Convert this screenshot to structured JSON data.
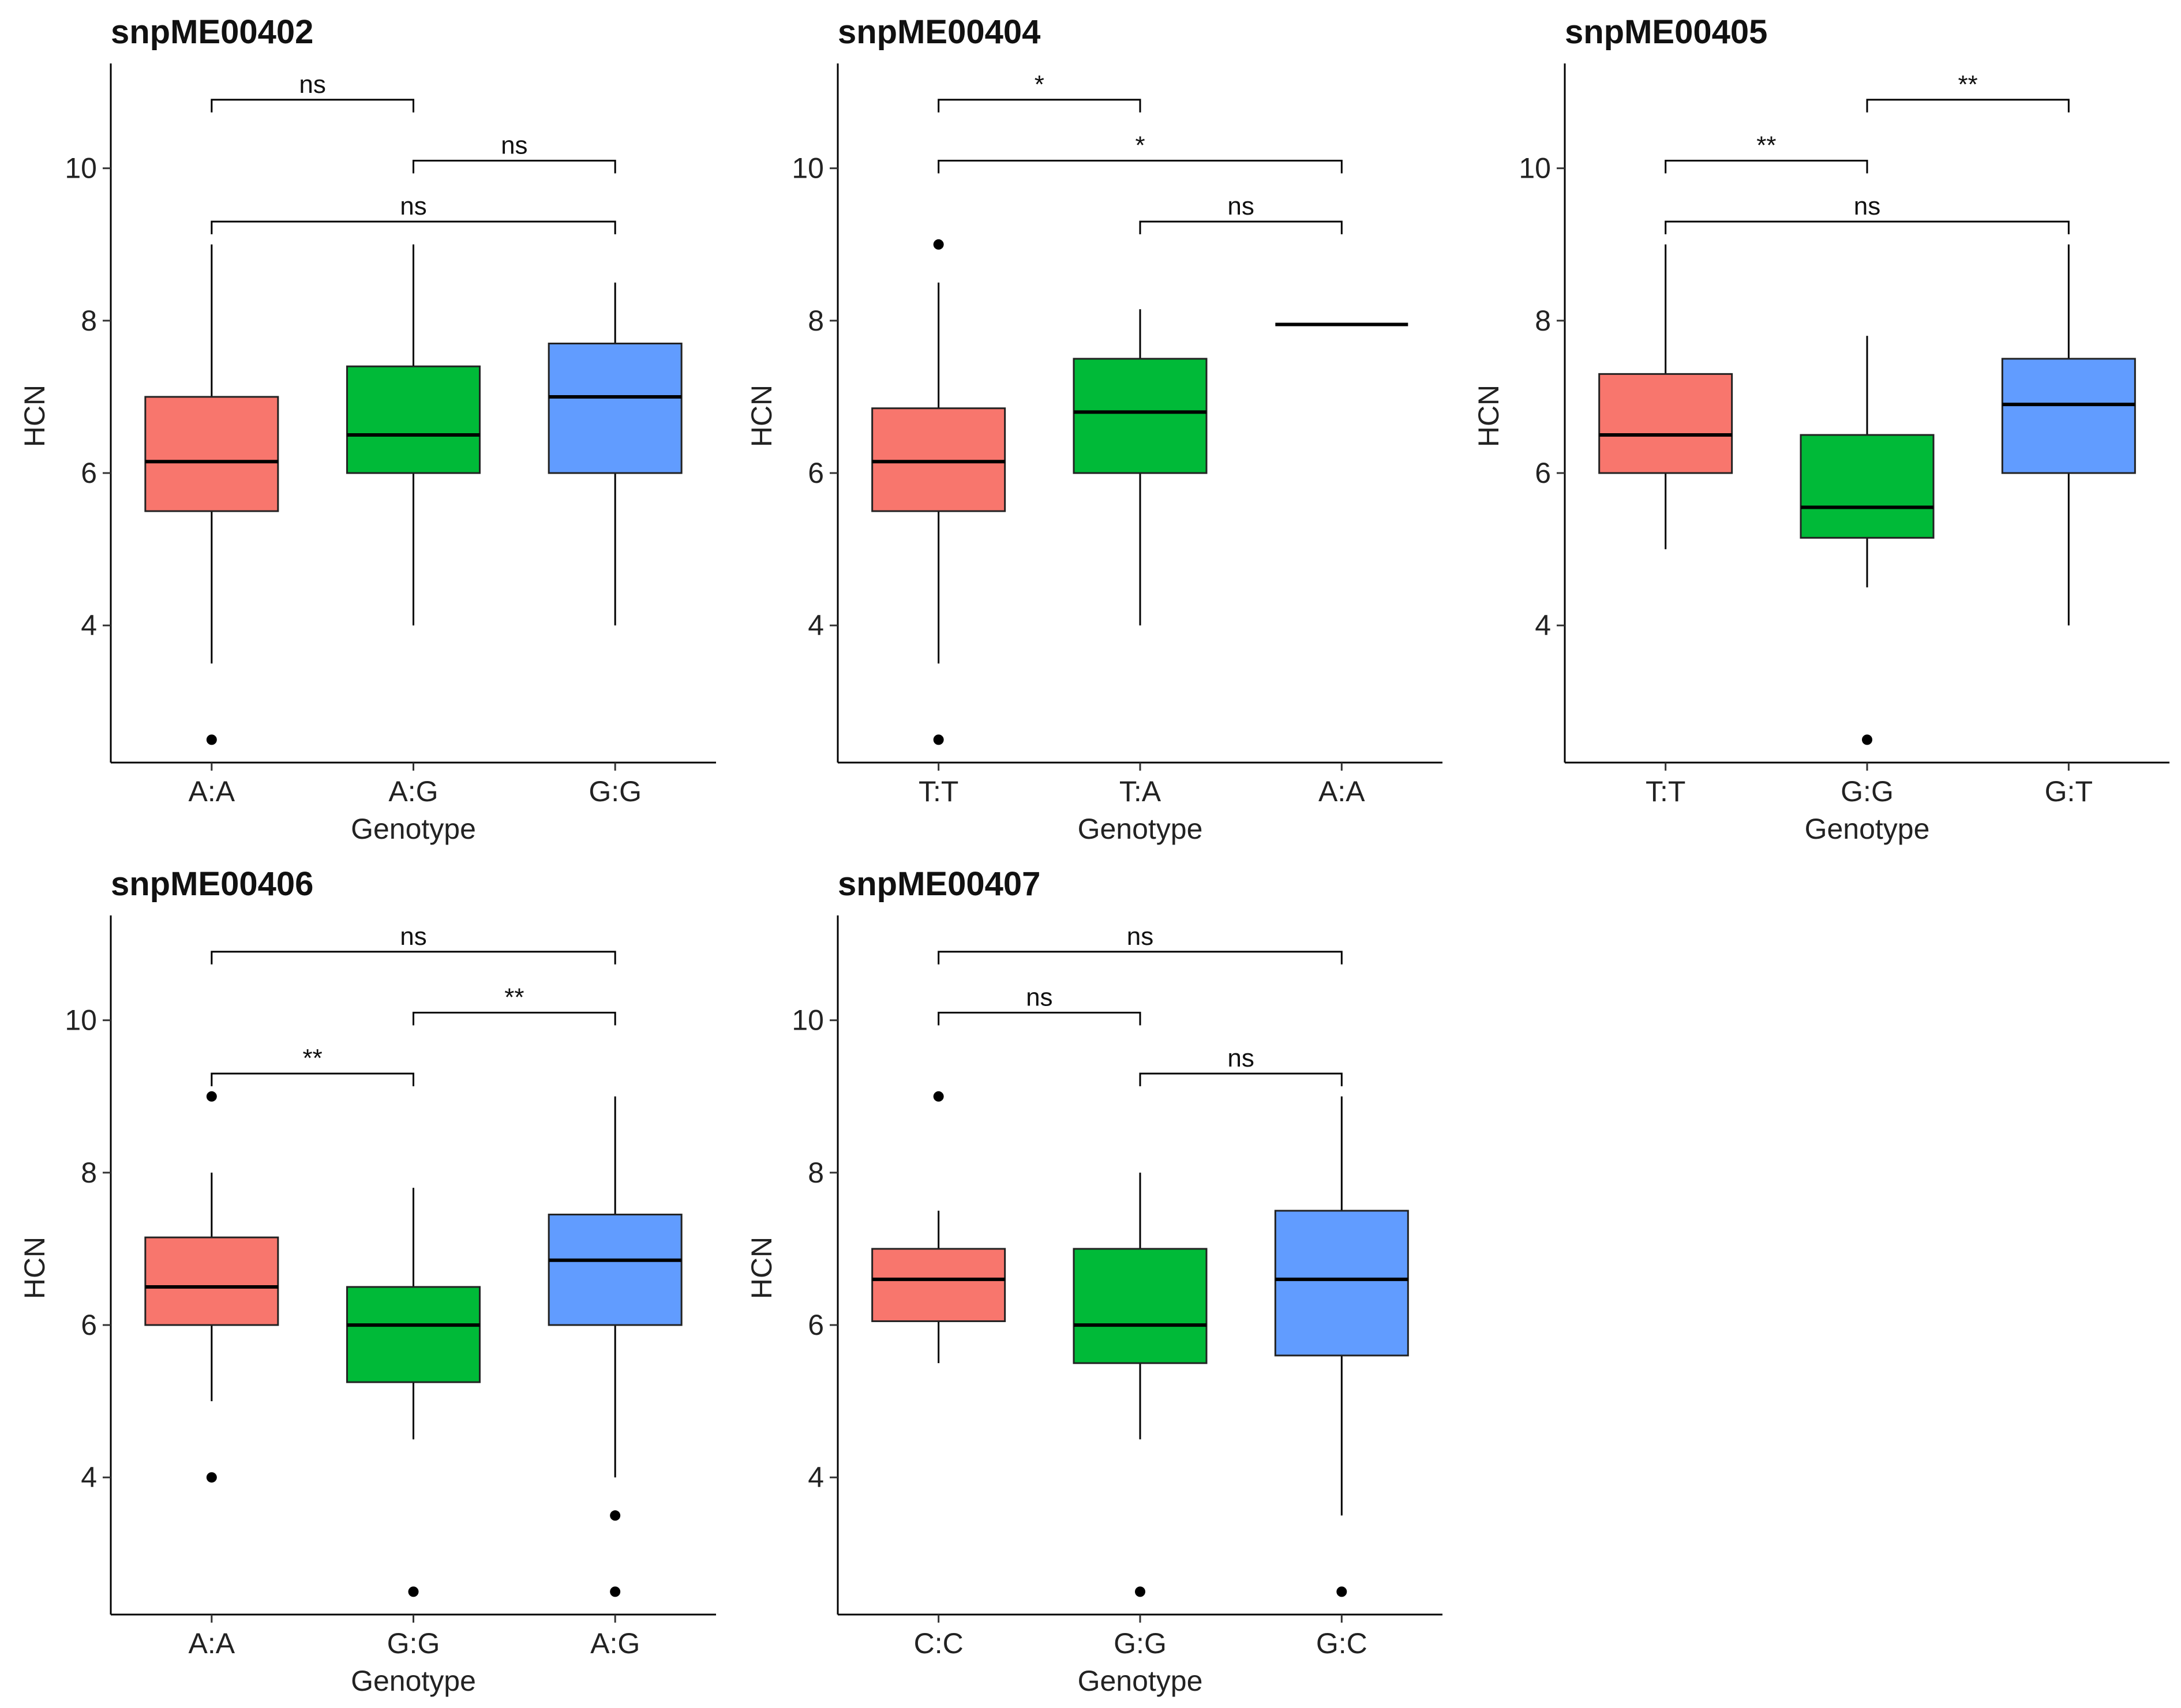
{
  "chart_data": [
    {
      "type": "box",
      "title": "snpME00402",
      "xlabel": "Genotype",
      "ylabel": "HCN",
      "ylim": [
        2.2,
        11.3
      ],
      "yticks": [
        4,
        6,
        8,
        10
      ],
      "categories": [
        "A:A",
        "A:G",
        "G:G"
      ],
      "boxes": [
        {
          "category": "A:A",
          "color": "#F8766D",
          "q1": 5.5,
          "median": 6.15,
          "q3": 7.0,
          "low": 3.5,
          "high": 9.0,
          "outliers": [
            2.5
          ]
        },
        {
          "category": "A:G",
          "color": "#00BA38",
          "q1": 6.0,
          "median": 6.5,
          "q3": 7.4,
          "low": 4.0,
          "high": 9.0,
          "outliers": []
        },
        {
          "category": "G:G",
          "color": "#619CFF",
          "q1": 6.0,
          "median": 7.0,
          "q3": 7.7,
          "low": 4.0,
          "high": 8.5,
          "outliers": []
        }
      ],
      "comparisons": [
        {
          "from": 0,
          "to": 1,
          "y": 10.9,
          "label": "ns"
        },
        {
          "from": 1,
          "to": 2,
          "y": 10.1,
          "label": "ns"
        },
        {
          "from": 0,
          "to": 2,
          "y": 9.3,
          "label": "ns"
        }
      ]
    },
    {
      "type": "box",
      "title": "snpME00404",
      "xlabel": "Genotype",
      "ylabel": "HCN",
      "ylim": [
        2.2,
        11.3
      ],
      "yticks": [
        4,
        6,
        8,
        10
      ],
      "categories": [
        "T:T",
        "T:A",
        "A:A"
      ],
      "boxes": [
        {
          "category": "T:T",
          "color": "#F8766D",
          "q1": 5.5,
          "median": 6.15,
          "q3": 6.85,
          "low": 3.5,
          "high": 8.5,
          "outliers": [
            9.0,
            2.5
          ]
        },
        {
          "category": "T:A",
          "color": "#00BA38",
          "q1": 6.0,
          "median": 6.8,
          "q3": 7.5,
          "low": 4.0,
          "high": 8.15,
          "outliers": []
        },
        {
          "category": "A:A",
          "color": "#619CFF",
          "q1": 7.95,
          "median": 7.95,
          "q3": 7.95,
          "low": 7.95,
          "high": 7.95,
          "outliers": []
        }
      ],
      "comparisons": [
        {
          "from": 0,
          "to": 1,
          "y": 10.9,
          "label": "*"
        },
        {
          "from": 0,
          "to": 2,
          "y": 10.1,
          "label": "*"
        },
        {
          "from": 1,
          "to": 2,
          "y": 9.3,
          "label": "ns"
        }
      ]
    },
    {
      "type": "box",
      "title": "snpME00405",
      "xlabel": "Genotype",
      "ylabel": "HCN",
      "ylim": [
        2.2,
        11.3
      ],
      "yticks": [
        4,
        6,
        8,
        10
      ],
      "categories": [
        "T:T",
        "G:G",
        "G:T"
      ],
      "boxes": [
        {
          "category": "T:T",
          "color": "#F8766D",
          "q1": 6.0,
          "median": 6.5,
          "q3": 7.3,
          "low": 5.0,
          "high": 9.0,
          "outliers": []
        },
        {
          "category": "G:G",
          "color": "#00BA38",
          "q1": 5.15,
          "median": 5.55,
          "q3": 6.5,
          "low": 4.5,
          "high": 7.8,
          "outliers": [
            2.5
          ]
        },
        {
          "category": "G:T",
          "color": "#619CFF",
          "q1": 6.0,
          "median": 6.9,
          "q3": 7.5,
          "low": 4.0,
          "high": 9.0,
          "outliers": []
        }
      ],
      "comparisons": [
        {
          "from": 1,
          "to": 2,
          "y": 10.9,
          "label": "**"
        },
        {
          "from": 0,
          "to": 1,
          "y": 10.1,
          "label": "**"
        },
        {
          "from": 0,
          "to": 2,
          "y": 9.3,
          "label": "ns"
        }
      ]
    },
    {
      "type": "box",
      "title": "snpME00406",
      "xlabel": "Genotype",
      "ylabel": "HCN",
      "ylim": [
        2.2,
        11.3
      ],
      "yticks": [
        4,
        6,
        8,
        10
      ],
      "categories": [
        "A:A",
        "G:G",
        "A:G"
      ],
      "boxes": [
        {
          "category": "A:A",
          "color": "#F8766D",
          "q1": 6.0,
          "median": 6.5,
          "q3": 7.15,
          "low": 5.0,
          "high": 8.0,
          "outliers": [
            9.0,
            4.0
          ]
        },
        {
          "category": "G:G",
          "color": "#00BA38",
          "q1": 5.25,
          "median": 6.0,
          "q3": 6.5,
          "low": 4.5,
          "high": 7.8,
          "outliers": [
            2.5
          ]
        },
        {
          "category": "A:G",
          "color": "#619CFF",
          "q1": 6.0,
          "median": 6.85,
          "q3": 7.45,
          "low": 4.0,
          "high": 9.0,
          "outliers": [
            3.5,
            2.5
          ]
        }
      ],
      "comparisons": [
        {
          "from": 0,
          "to": 2,
          "y": 10.9,
          "label": "ns"
        },
        {
          "from": 1,
          "to": 2,
          "y": 10.1,
          "label": "**"
        },
        {
          "from": 0,
          "to": 1,
          "y": 9.3,
          "label": "**"
        }
      ]
    },
    {
      "type": "box",
      "title": "snpME00407",
      "xlabel": "Genotype",
      "ylabel": "HCN",
      "ylim": [
        2.2,
        11.3
      ],
      "yticks": [
        4,
        6,
        8,
        10
      ],
      "categories": [
        "C:C",
        "G:G",
        "G:C"
      ],
      "boxes": [
        {
          "category": "C:C",
          "color": "#F8766D",
          "q1": 6.05,
          "median": 6.6,
          "q3": 7.0,
          "low": 5.5,
          "high": 7.5,
          "outliers": [
            9.0
          ]
        },
        {
          "category": "G:G",
          "color": "#00BA38",
          "q1": 5.5,
          "median": 6.0,
          "q3": 7.0,
          "low": 4.5,
          "high": 8.0,
          "outliers": [
            2.5
          ]
        },
        {
          "category": "G:C",
          "color": "#619CFF",
          "q1": 5.6,
          "median": 6.6,
          "q3": 7.5,
          "low": 3.5,
          "high": 9.0,
          "outliers": [
            2.5
          ]
        }
      ],
      "comparisons": [
        {
          "from": 0,
          "to": 2,
          "y": 10.9,
          "label": "ns"
        },
        {
          "from": 0,
          "to": 1,
          "y": 10.1,
          "label": "ns"
        },
        {
          "from": 1,
          "to": 2,
          "y": 9.3,
          "label": "ns"
        }
      ]
    }
  ]
}
